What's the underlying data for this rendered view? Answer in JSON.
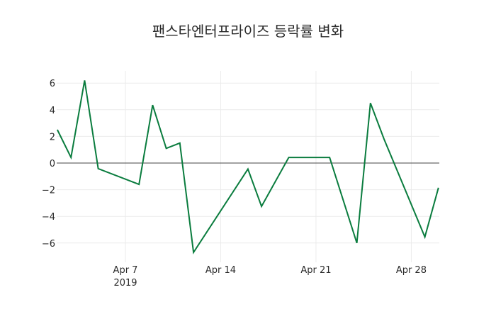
{
  "chart_data": {
    "type": "line",
    "title": "팬스타엔터프라이즈 등락률 변화",
    "xlabel": "",
    "ylabel": "",
    "x": [
      "2019-04-02",
      "2019-04-03",
      "2019-04-04",
      "2019-04-05",
      "2019-04-08",
      "2019-04-09",
      "2019-04-10",
      "2019-04-11",
      "2019-04-12",
      "2019-04-16",
      "2019-04-17",
      "2019-04-19",
      "2019-04-22",
      "2019-04-24",
      "2019-04-25",
      "2019-04-26",
      "2019-04-29",
      "2019-04-30"
    ],
    "series": [
      {
        "name": "등락률",
        "color": "#0a7c3e",
        "values": [
          2.5,
          0.42,
          6.2,
          -0.42,
          -1.6,
          4.35,
          1.1,
          1.5,
          -6.7,
          -0.45,
          -3.25,
          0.42,
          0.42,
          -6.0,
          4.5,
          1.8,
          -5.55,
          -1.85
        ]
      }
    ],
    "ylim": [
      -7.2,
      6.8
    ],
    "yticks": [
      6,
      4,
      2,
      0,
      -2,
      -4,
      -6
    ],
    "ytick_labels": [
      "6",
      "4",
      "2",
      "0",
      "−2",
      "−4",
      "−6"
    ],
    "xticks": [
      "2019-04-07",
      "2019-04-14",
      "2019-04-21",
      "2019-04-28"
    ],
    "xtick_labels": [
      "Apr 7",
      "Apr 14",
      "Apr 21",
      "Apr 28"
    ],
    "xtick_sublabel": "2019",
    "grid": true,
    "legend": "none"
  }
}
